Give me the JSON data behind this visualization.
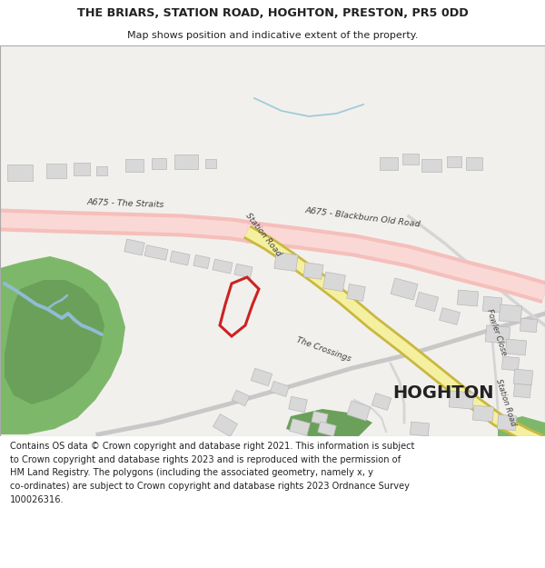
{
  "title_line1": "THE BRIARS, STATION ROAD, HOGHTON, PRESTON, PR5 0DD",
  "title_line2": "Map shows position and indicative extent of the property.",
  "footer_text": "Contains OS data © Crown copyright and database right 2021. This information is subject\nto Crown copyright and database rights 2023 and is reproduced with the permission of\nHM Land Registry. The polygons (including the associated geometry, namely x, y\nco-ordinates) are subject to Crown copyright and database rights 2023 Ordnance Survey\n100026316.",
  "map_bg": "#f2f0ed",
  "road_pink_fill": "#f5bfbb",
  "road_pink_edge": "#e8a8a5",
  "road_yellow_fill": "#f5f0a0",
  "road_yellow_edge": "#c8b840",
  "building_fill": "#d8d8d8",
  "building_edge": "#b8b8b8",
  "green_dark": "#6ba05a",
  "green_light": "#7db86a",
  "stream_blue": "#90bcd4",
  "stream_top": "#a0ccd8",
  "plot_red": "#cc2222",
  "road_gray": "#c8c8c8",
  "road_gray2": "#d5d5d5",
  "text_color": "#404040",
  "text_bold": "#222222",
  "white": "#ffffff"
}
